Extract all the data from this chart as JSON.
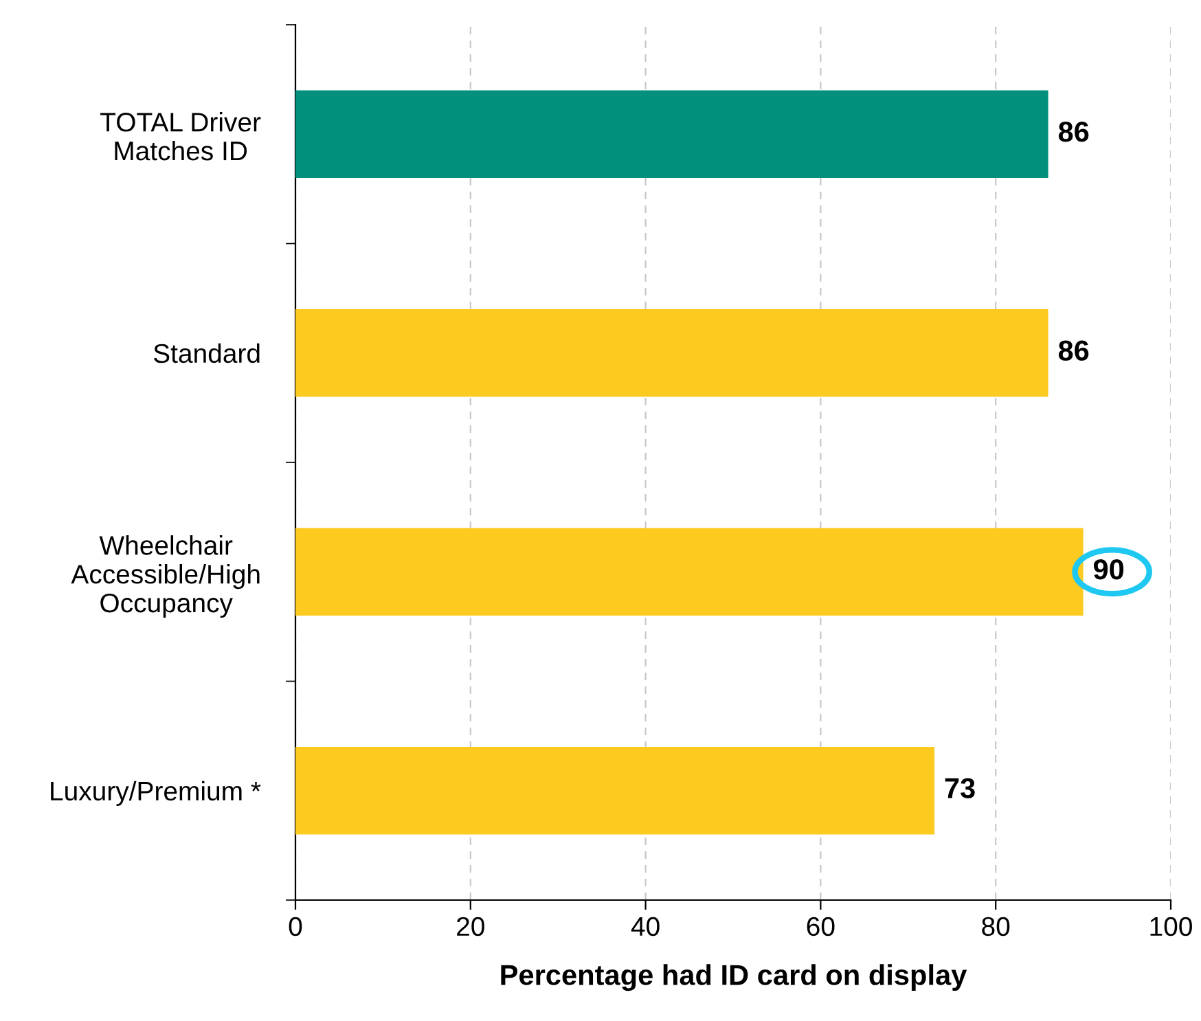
{
  "chart_data": {
    "type": "bar",
    "orientation": "horizontal",
    "xlabel": "Percentage had ID card on display",
    "categories": [
      "TOTAL Driver\nMatches ID",
      "Standard",
      "Wheelchair\nAccessible/High\nOccupancy",
      "Luxury/Premium *"
    ],
    "values": [
      86,
      86,
      90,
      73
    ],
    "colors": [
      "#00907c",
      "#fdca1f",
      "#fdca1f",
      "#fdca1f"
    ],
    "xlim": [
      0,
      100
    ],
    "xticks": [
      0,
      20,
      40,
      60,
      80,
      100
    ],
    "grid": "x",
    "data_labels": true
  }
}
